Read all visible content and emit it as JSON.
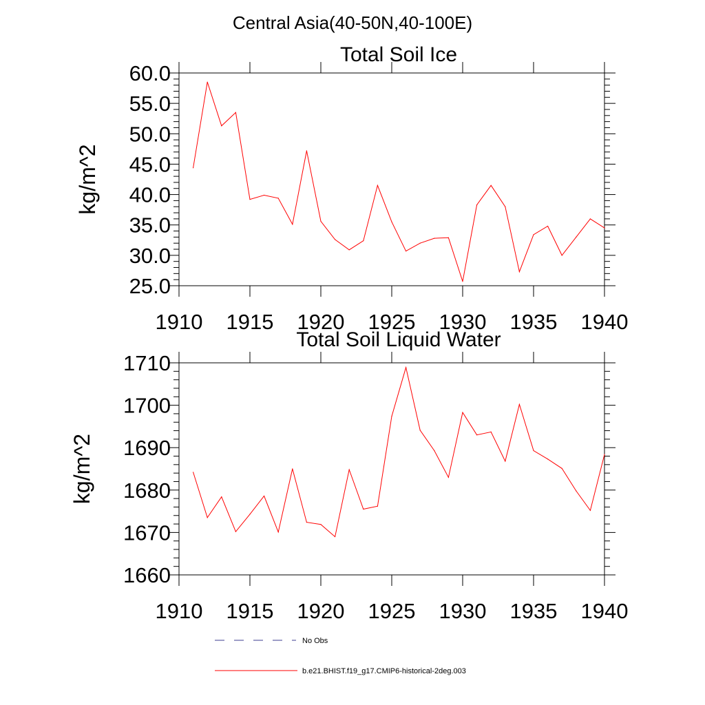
{
  "figure": {
    "main_title": "Central Asia(40-50N,40-100E)"
  },
  "legend": [
    {
      "label": "No Obs",
      "color": "#3b3b8f",
      "dash": "dashed"
    },
    {
      "label": "b.e21.BHIST.f19_g17.CMIP6-historical-2deg.003",
      "color": "#ff0000",
      "dash": "solid"
    }
  ],
  "chart_data": [
    {
      "type": "line",
      "title": "Total Soil Ice",
      "xlabel": "",
      "ylabel": "kg/m^2",
      "xlim": [
        1910,
        1940
      ],
      "ylim": [
        25,
        60
      ],
      "x_ticks": [
        "1910",
        "1915",
        "1920",
        "1925",
        "1930",
        "1935",
        "1940"
      ],
      "y_ticks": [
        "25.0",
        "30.0",
        "35.0",
        "40.0",
        "45.0",
        "50.0",
        "55.0",
        "60.0"
      ],
      "series": [
        {
          "name": "b.e21.BHIST.f19_g17.CMIP6-historical-2deg.003",
          "color": "#ff0000",
          "x": [
            1911,
            1912,
            1913,
            1914,
            1915,
            1916,
            1917,
            1918,
            1919,
            1920,
            1921,
            1922,
            1923,
            1924,
            1925,
            1926,
            1927,
            1928,
            1929,
            1930,
            1931,
            1932,
            1933,
            1934,
            1935,
            1936,
            1937,
            1938,
            1939,
            1940
          ],
          "y": [
            44.4,
            58.5,
            51.3,
            53.5,
            39.2,
            39.9,
            39.4,
            35.1,
            47.2,
            35.6,
            32.6,
            30.9,
            32.4,
            41.5,
            35.5,
            30.7,
            32.0,
            32.8,
            32.9,
            25.7,
            38.3,
            41.5,
            38.0,
            27.3,
            33.4,
            34.8,
            30.0,
            33.0,
            36.0,
            34.5
          ]
        }
      ]
    },
    {
      "type": "line",
      "title": "Total Soil Liquid Water",
      "xlabel": "",
      "ylabel": "kg/m^2",
      "xlim": [
        1910,
        1940
      ],
      "ylim": [
        1660,
        1710
      ],
      "x_ticks": [
        "1910",
        "1915",
        "1920",
        "1925",
        "1930",
        "1935",
        "1940"
      ],
      "y_ticks": [
        "1660",
        "1670",
        "1680",
        "1690",
        "1700",
        "1710"
      ],
      "series": [
        {
          "name": "b.e21.BHIST.f19_g17.CMIP6-historical-2deg.003",
          "color": "#ff0000",
          "x": [
            1911,
            1912,
            1913,
            1914,
            1915,
            1916,
            1917,
            1918,
            1919,
            1920,
            1921,
            1922,
            1923,
            1924,
            1925,
            1926,
            1927,
            1928,
            1929,
            1930,
            1931,
            1932,
            1933,
            1934,
            1935,
            1936,
            1937,
            1938,
            1939,
            1940
          ],
          "y": [
            1684.2,
            1673.5,
            1678.4,
            1670.2,
            1674.3,
            1678.6,
            1670.1,
            1685.0,
            1672.4,
            1671.9,
            1669.0,
            1684.8,
            1675.5,
            1676.2,
            1697.4,
            1708.9,
            1694.1,
            1689.3,
            1683.0,
            1698.3,
            1693.0,
            1693.7,
            1686.8,
            1700.2,
            1689.3,
            1687.3,
            1685.1,
            1679.8,
            1675.2,
            1688.4
          ]
        }
      ]
    }
  ]
}
